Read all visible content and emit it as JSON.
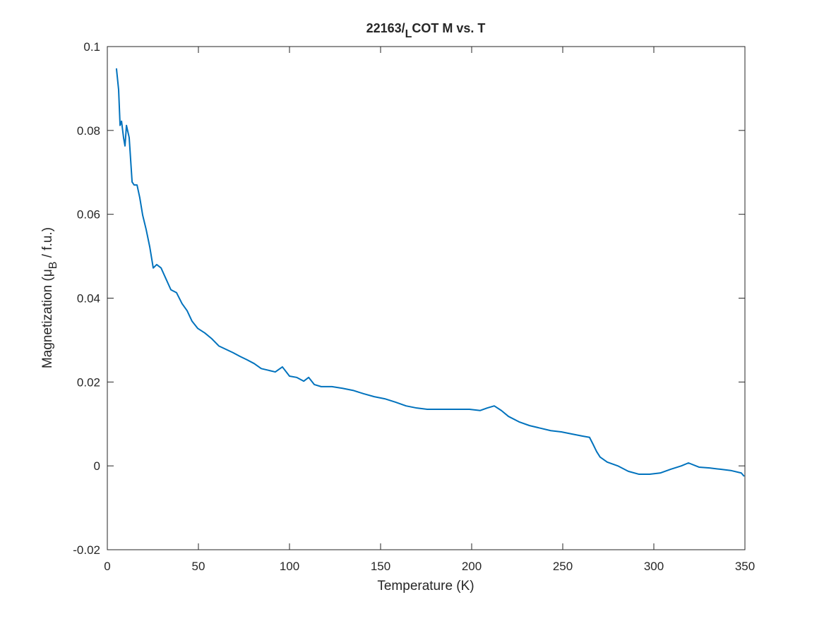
{
  "chart_data": {
    "type": "line",
    "title": [
      "22163/",
      "L",
      "COT M vs. T"
    ],
    "x_label": "Temperature (K)",
    "y_label": [
      "Magnetization (μ",
      "B",
      " / f.u.)"
    ],
    "x": [
      5.0,
      6.2,
      7.0,
      7.8,
      8.9,
      9.7,
      10.5,
      12.0,
      13.6,
      14.7,
      16.3,
      17.8,
      19.4,
      21.3,
      23.3,
      25.2,
      27.1,
      29.5,
      32.2,
      34.9,
      38.0,
      41.0,
      43.8,
      46.5,
      49.6,
      53.5,
      57.4,
      61.2,
      65.1,
      69.0,
      72.9,
      76.7,
      80.6,
      84.5,
      88.4,
      92.2,
      96.1,
      100.0,
      103.9,
      107.8,
      110.5,
      113.6,
      117.4,
      123.3,
      129.1,
      134.9,
      140.7,
      146.5,
      152.3,
      158.1,
      164.0,
      169.8,
      175.6,
      181.4,
      187.2,
      193.0,
      198.8,
      204.7,
      208.5,
      212.4,
      216.3,
      220.2,
      226.0,
      231.8,
      237.6,
      243.4,
      249.2,
      255.0,
      260.9,
      264.7,
      266.7,
      268.6,
      270.5,
      274.4,
      280.2,
      286.0,
      291.9,
      297.7,
      303.5,
      309.3,
      315.1,
      319.0,
      324.8,
      330.6,
      336.4,
      342.2,
      348.0,
      349.6
    ],
    "series": [
      {
        "color": "#0072bd",
        "values": [
          0.0948,
          0.0897,
          0.0812,
          0.0822,
          0.0783,
          0.0763,
          0.0812,
          0.0783,
          0.0677,
          0.067,
          0.067,
          0.064,
          0.0598,
          0.0564,
          0.0522,
          0.0472,
          0.048,
          0.0472,
          0.0446,
          0.042,
          0.0413,
          0.0387,
          0.037,
          0.0345,
          0.0328,
          0.0317,
          0.0303,
          0.0286,
          0.0278,
          0.027,
          0.0261,
          0.0253,
          0.0244,
          0.0232,
          0.0228,
          0.0224,
          0.0236,
          0.0214,
          0.0211,
          0.0202,
          0.0211,
          0.0194,
          0.0189,
          0.0189,
          0.0185,
          0.018,
          0.0172,
          0.0165,
          0.016,
          0.0152,
          0.0143,
          0.0138,
          0.0135,
          0.0135,
          0.0135,
          0.0135,
          0.0135,
          0.0132,
          0.0138,
          0.0143,
          0.0132,
          0.0118,
          0.0105,
          0.0096,
          0.009,
          0.0084,
          0.0081,
          0.0076,
          0.0071,
          0.0068,
          0.0051,
          0.0034,
          0.0021,
          0.0009,
          0.0,
          -0.0013,
          -0.002,
          -0.002,
          -0.0017,
          -0.0008,
          0.0,
          0.0007,
          -0.0003,
          -0.0005,
          -0.0008,
          -0.0011,
          -0.0017,
          -0.0025
        ]
      }
    ],
    "xlim": [
      0,
      350
    ],
    "xticks": [
      0,
      50,
      100,
      150,
      200,
      250,
      300,
      350
    ],
    "ylim": [
      -0.02,
      0.1
    ],
    "yticks": [
      -0.02,
      0,
      0.02,
      0.04,
      0.06,
      0.08,
      0.1
    ],
    "grid": false
  }
}
